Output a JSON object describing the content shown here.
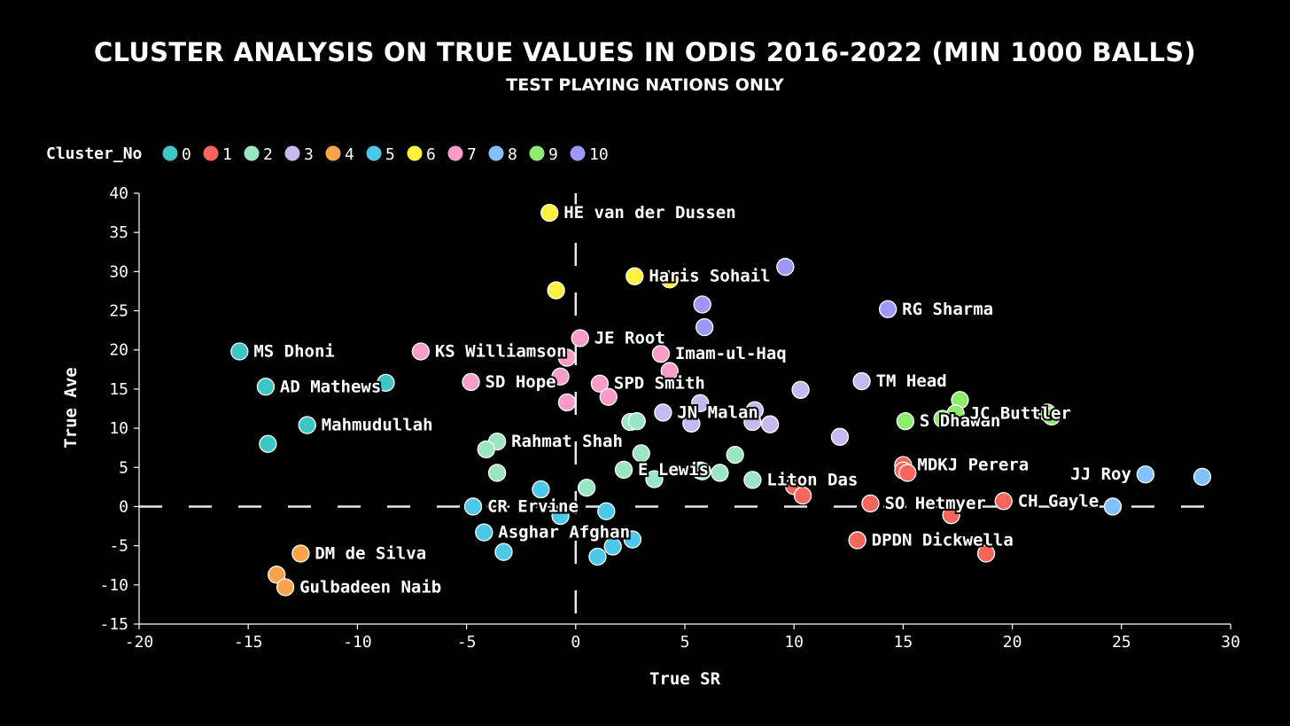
{
  "chart_data": {
    "type": "scatter",
    "title": "CLUSTER ANALYSIS ON TRUE VALUES IN ODIS 2016-2022 (MIN 1000 BALLS)",
    "subtitle": "TEST PLAYING NATIONS ONLY",
    "xlabel": "True SR",
    "ylabel": "True Ave",
    "xlim": [
      -20,
      30
    ],
    "ylim": [
      -15,
      40
    ],
    "xticks": [
      -20,
      -15,
      -10,
      -5,
      0,
      5,
      10,
      15,
      20,
      25,
      30
    ],
    "yticks": [
      -15,
      -10,
      -5,
      0,
      5,
      10,
      15,
      20,
      25,
      30,
      35,
      40
    ],
    "reference_lines": {
      "x": 0,
      "y": 0,
      "style": "dashed"
    },
    "legend": {
      "title": "Cluster_No",
      "position": "top-left",
      "entries": [
        {
          "label": "0",
          "color": "#3cc6c4"
        },
        {
          "label": "1",
          "color": "#f8665b"
        },
        {
          "label": "2",
          "color": "#9ae6c2"
        },
        {
          "label": "3",
          "color": "#c6b8f0"
        },
        {
          "label": "4",
          "color": "#fca34c"
        },
        {
          "label": "5",
          "color": "#4cc8e8"
        },
        {
          "label": "6",
          "color": "#fff23f"
        },
        {
          "label": "7",
          "color": "#fb9bc7"
        },
        {
          "label": "8",
          "color": "#82c0ff"
        },
        {
          "label": "9",
          "color": "#8dee6e"
        },
        {
          "label": "10",
          "color": "#9c97f8"
        }
      ]
    },
    "points": [
      {
        "x": -15.4,
        "y": 19.8,
        "cluster": "0",
        "label": "MS Dhoni"
      },
      {
        "x": -14.2,
        "y": 15.3,
        "cluster": "0",
        "label": "AD Mathews"
      },
      {
        "x": -8.7,
        "y": 15.8,
        "cluster": "0",
        "label": ""
      },
      {
        "x": -12.3,
        "y": 10.4,
        "cluster": "0",
        "label": "Mahmudullah"
      },
      {
        "x": -14.1,
        "y": 8.0,
        "cluster": "0",
        "label": ""
      },
      {
        "x": -1.2,
        "y": 37.5,
        "cluster": "6",
        "label": "HE van der Dussen"
      },
      {
        "x": 2.7,
        "y": 29.4,
        "cluster": "6",
        "label": "Haris Sohail"
      },
      {
        "x": 4.3,
        "y": 29.0,
        "cluster": "6",
        "label": ""
      },
      {
        "x": -0.9,
        "y": 27.6,
        "cluster": "6",
        "label": ""
      },
      {
        "x": 9.6,
        "y": 30.6,
        "cluster": "10",
        "label": ""
      },
      {
        "x": 5.8,
        "y": 25.8,
        "cluster": "10",
        "label": ""
      },
      {
        "x": 14.3,
        "y": 25.2,
        "cluster": "10",
        "label": "RG Sharma"
      },
      {
        "x": 5.9,
        "y": 22.9,
        "cluster": "10",
        "label": ""
      },
      {
        "x": 0.2,
        "y": 21.5,
        "cluster": "7",
        "label": "JE Root"
      },
      {
        "x": -7.1,
        "y": 19.8,
        "cluster": "7",
        "label": "KS Williamson"
      },
      {
        "x": -0.4,
        "y": 19.0,
        "cluster": "7",
        "label": ""
      },
      {
        "x": 3.9,
        "y": 19.5,
        "cluster": "7",
        "label": "Imam-ul-Haq"
      },
      {
        "x": 4.3,
        "y": 17.3,
        "cluster": "7",
        "label": ""
      },
      {
        "x": -4.8,
        "y": 15.9,
        "cluster": "7",
        "label": "SD Hope"
      },
      {
        "x": -0.7,
        "y": 16.6,
        "cluster": "7",
        "label": ""
      },
      {
        "x": 1.1,
        "y": 15.7,
        "cluster": "7",
        "label": "SPD Smith"
      },
      {
        "x": 1.5,
        "y": 14.0,
        "cluster": "7",
        "label": ""
      },
      {
        "x": -0.4,
        "y": 13.3,
        "cluster": "7",
        "label": ""
      },
      {
        "x": 13.1,
        "y": 16.0,
        "cluster": "3",
        "label": "TM Head"
      },
      {
        "x": 10.3,
        "y": 14.9,
        "cluster": "3",
        "label": ""
      },
      {
        "x": 5.7,
        "y": 13.2,
        "cluster": "3",
        "label": ""
      },
      {
        "x": 8.2,
        "y": 12.3,
        "cluster": "3",
        "label": ""
      },
      {
        "x": 4.0,
        "y": 12.0,
        "cluster": "3",
        "label": "JN Malan"
      },
      {
        "x": 5.3,
        "y": 10.6,
        "cluster": "3",
        "label": ""
      },
      {
        "x": 8.1,
        "y": 10.8,
        "cluster": "3",
        "label": ""
      },
      {
        "x": 8.9,
        "y": 10.5,
        "cluster": "3",
        "label": ""
      },
      {
        "x": 12.1,
        "y": 8.9,
        "cluster": "3",
        "label": ""
      },
      {
        "x": 15.1,
        "y": 10.9,
        "cluster": "9",
        "label": "S Dhawan"
      },
      {
        "x": 17.6,
        "y": 13.6,
        "cluster": "9",
        "label": ""
      },
      {
        "x": 16.8,
        "y": 11.2,
        "cluster": "9",
        "label": ""
      },
      {
        "x": 17.4,
        "y": 11.9,
        "cluster": "9",
        "label": "JC Buttler"
      },
      {
        "x": 21.6,
        "y": 12.0,
        "cluster": "9",
        "label": ""
      },
      {
        "x": 21.8,
        "y": 11.5,
        "cluster": "9",
        "label": ""
      },
      {
        "x": -3.6,
        "y": 8.3,
        "cluster": "2",
        "label": "Rahmat Shah"
      },
      {
        "x": -4.1,
        "y": 7.3,
        "cluster": "2",
        "label": ""
      },
      {
        "x": -3.6,
        "y": 4.3,
        "cluster": "2",
        "label": ""
      },
      {
        "x": 2.5,
        "y": 10.8,
        "cluster": "2",
        "label": ""
      },
      {
        "x": 2.8,
        "y": 10.9,
        "cluster": "2",
        "label": ""
      },
      {
        "x": 3.0,
        "y": 6.8,
        "cluster": "2",
        "label": ""
      },
      {
        "x": 7.3,
        "y": 6.6,
        "cluster": "2",
        "label": ""
      },
      {
        "x": 2.2,
        "y": 4.7,
        "cluster": "2",
        "label": "E Lewis"
      },
      {
        "x": 5.7,
        "y": 4.6,
        "cluster": "2",
        "label": ""
      },
      {
        "x": 5.8,
        "y": 4.5,
        "cluster": "2",
        "label": ""
      },
      {
        "x": 6.6,
        "y": 4.3,
        "cluster": "2",
        "label": ""
      },
      {
        "x": 3.6,
        "y": 3.5,
        "cluster": "2",
        "label": ""
      },
      {
        "x": 8.1,
        "y": 3.4,
        "cluster": "2",
        "label": "Liton Das"
      },
      {
        "x": 0.5,
        "y": 2.4,
        "cluster": "2",
        "label": ""
      },
      {
        "x": -1.6,
        "y": 2.2,
        "cluster": "5",
        "label": ""
      },
      {
        "x": -4.7,
        "y": 0.0,
        "cluster": "5",
        "label": "CR Ervine"
      },
      {
        "x": -0.7,
        "y": -1.2,
        "cluster": "5",
        "label": ""
      },
      {
        "x": 1.4,
        "y": -0.6,
        "cluster": "5",
        "label": ""
      },
      {
        "x": -4.2,
        "y": -3.3,
        "cluster": "5",
        "label": "Asghar Afghan"
      },
      {
        "x": 2.6,
        "y": -4.2,
        "cluster": "5",
        "label": ""
      },
      {
        "x": 1.7,
        "y": -5.1,
        "cluster": "5",
        "label": ""
      },
      {
        "x": -3.3,
        "y": -5.8,
        "cluster": "5",
        "label": ""
      },
      {
        "x": 1.0,
        "y": -6.4,
        "cluster": "5",
        "label": ""
      },
      {
        "x": 15.0,
        "y": 5.3,
        "cluster": "1",
        "label": "MDKJ Perera"
      },
      {
        "x": 15.0,
        "y": 4.6,
        "cluster": "1",
        "label": ""
      },
      {
        "x": 15.2,
        "y": 4.3,
        "cluster": "1",
        "label": ""
      },
      {
        "x": 10.0,
        "y": 2.6,
        "cluster": "1",
        "label": ""
      },
      {
        "x": 10.4,
        "y": 1.4,
        "cluster": "1",
        "label": ""
      },
      {
        "x": 13.5,
        "y": 0.4,
        "cluster": "1",
        "label": "SO Hetmyer"
      },
      {
        "x": 19.6,
        "y": 0.7,
        "cluster": "1",
        "label": "CH Gayle"
      },
      {
        "x": 17.2,
        "y": -1.1,
        "cluster": "1",
        "label": ""
      },
      {
        "x": 12.9,
        "y": -4.3,
        "cluster": "1",
        "label": "DPDN Dickwella"
      },
      {
        "x": 18.8,
        "y": -6.0,
        "cluster": "1",
        "label": ""
      },
      {
        "x": 26.1,
        "y": 4.1,
        "cluster": "8",
        "label": "JJ Roy"
      },
      {
        "x": 28.7,
        "y": 3.8,
        "cluster": "8",
        "label": ""
      },
      {
        "x": 24.6,
        "y": 0.0,
        "cluster": "8",
        "label": ""
      },
      {
        "x": -12.6,
        "y": -6.0,
        "cluster": "4",
        "label": "DM de Silva"
      },
      {
        "x": -13.7,
        "y": -8.7,
        "cluster": "4",
        "label": ""
      },
      {
        "x": -13.3,
        "y": -10.3,
        "cluster": "4",
        "label": "Gulbadeen Naib"
      }
    ]
  }
}
